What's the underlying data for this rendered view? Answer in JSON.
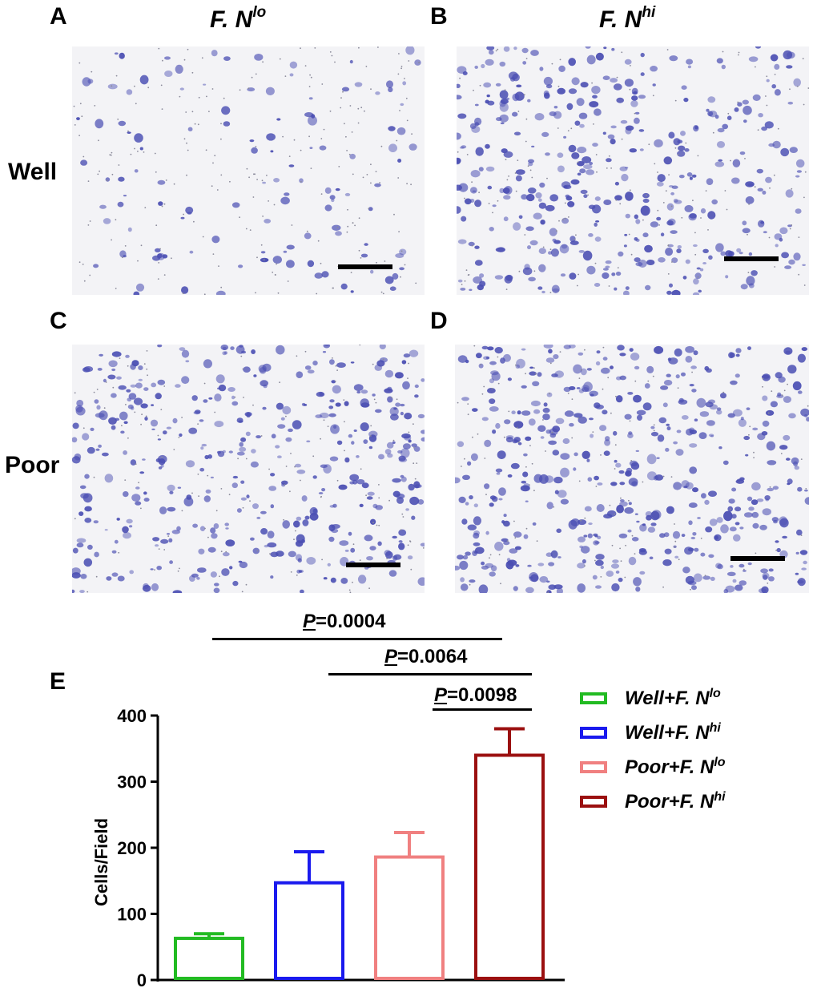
{
  "panels": {
    "A": {
      "letter": "A",
      "column_title": "F. N",
      "column_title_sup": "lo"
    },
    "B": {
      "letter": "B",
      "column_title": "F. N",
      "column_title_sup": "hi"
    },
    "C": {
      "letter": "C"
    },
    "D": {
      "letter": "D"
    },
    "E": {
      "letter": "E"
    }
  },
  "row_labels": {
    "well": "Well",
    "poor": "Poor"
  },
  "micrographs": {
    "stain_color": "#4b4fb3",
    "background_color": "#f3f3f6",
    "density": {
      "A": 0.25,
      "B": 0.8,
      "C": 0.85,
      "D": 1.0
    }
  },
  "significance": [
    {
      "prefix": "P",
      "text": "=0.0004"
    },
    {
      "prefix": "P",
      "text": "=0.0064"
    },
    {
      "prefix": "P",
      "text": "=0.0098"
    }
  ],
  "legend": [
    {
      "text": "Well+F. N",
      "sup": "lo",
      "color": "#22bb22"
    },
    {
      "text": "Well+F. N",
      "sup": "hi",
      "color": "#1a1aee"
    },
    {
      "text": "Poor+F. N",
      "sup": "lo",
      "color": "#f08080"
    },
    {
      "text": "Poor+F. N",
      "sup": "hi",
      "color": "#9b1010"
    }
  ],
  "chart_data": {
    "type": "bar",
    "categories": [
      "Well+F. Nlo",
      "Well+F. Nhi",
      "Poor+F. Nlo",
      "Poor+F. Nhi"
    ],
    "values": [
      63,
      147,
      186,
      340
    ],
    "errors": [
      7,
      47,
      37,
      40
    ],
    "colors": [
      "#22bb22",
      "#1a1aee",
      "#f08080",
      "#9b1010"
    ],
    "ylabel": "Cells/Field",
    "ylim": [
      0,
      400
    ],
    "yticks": [
      "0",
      "100",
      "200",
      "300",
      "400"
    ],
    "grid": false
  }
}
